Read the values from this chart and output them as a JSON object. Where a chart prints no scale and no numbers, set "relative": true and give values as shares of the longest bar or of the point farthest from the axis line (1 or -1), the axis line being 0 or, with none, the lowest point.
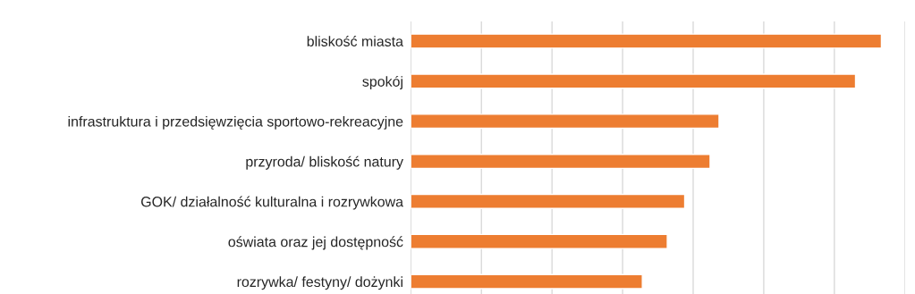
{
  "chart_data": {
    "type": "bar",
    "orientation": "horizontal",
    "relative": true,
    "grid": "x",
    "categories": [
      "bliskość miasta",
      "spokój",
      "infrastruktura i przedsięwzięcia sportowo-rekreacyjne",
      "przyroda/ bliskość natury",
      "GOK/ działalność kulturalna i rozrywkowa",
      "oświata oraz jej dostępność",
      "rozrywka/ festyny/ dożynki"
    ],
    "values": [
      1,
      0.945,
      0.655,
      0.636,
      0.582,
      0.545,
      0.492
    ],
    "color": "#ed7d31"
  }
}
